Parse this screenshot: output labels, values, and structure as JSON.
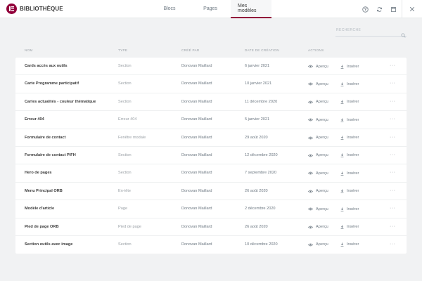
{
  "header": {
    "title": "BIBLIOTHÈQUE",
    "tabs": [
      {
        "label": "Blocs",
        "active": false
      },
      {
        "label": "Pages",
        "active": false
      },
      {
        "label": "Mes modèles",
        "active": true
      }
    ],
    "icons": [
      "help-icon",
      "sync-icon",
      "save-icon",
      "close-icon"
    ]
  },
  "search": {
    "placeholder": "RECHERCHE",
    "value": ""
  },
  "columns": {
    "name": "NOM",
    "type": "TYPE",
    "author": "CRÉÉ PAR",
    "date": "DATE DE CRÉATION",
    "actions": "ACTIONS"
  },
  "action_labels": {
    "preview": "Aperçu",
    "insert": "Insérer",
    "more": "···"
  },
  "templates": [
    {
      "name": "Cards accès aux outils",
      "type": "Section",
      "author": "Donovan Maillard",
      "date": "6 janvier 2021"
    },
    {
      "name": "Carte Programme participatif",
      "type": "Section",
      "author": "Donovan Maillard",
      "date": "10 janvier 2021"
    },
    {
      "name": "Cartes actualités - couleur thématique",
      "type": "Section",
      "author": "Donovan Maillard",
      "date": "11 décembre 2020"
    },
    {
      "name": "Erreur 404",
      "type": "Erreur 404",
      "author": "Donovan Maillard",
      "date": "5 janvier 2021"
    },
    {
      "name": "Formulaire de contact",
      "type": "Fenêtre modale",
      "author": "Donovan Maillard",
      "date": "29 août 2020"
    },
    {
      "name": "Formulaire de contact PIFH",
      "type": "Section",
      "author": "Donovan Maillard",
      "date": "12 décembre 2020"
    },
    {
      "name": "Hero de pages",
      "type": "Section",
      "author": "Donovan Maillard",
      "date": "7 septembre 2020"
    },
    {
      "name": "Menu Principal ORB",
      "type": "En-tête",
      "author": "Donovan Maillard",
      "date": "26 août 2020"
    },
    {
      "name": "Modèle d'article",
      "type": "Page",
      "author": "Donovan Maillard",
      "date": "2 décembre 2020"
    },
    {
      "name": "Pied de page ORB",
      "type": "Pied de page",
      "author": "Donovan Maillard",
      "date": "26 août 2020"
    },
    {
      "name": "Section outils avec image",
      "type": "Section",
      "author": "Donovan Maillard",
      "date": "10 décembre 2020"
    }
  ],
  "colors": {
    "brand": "#92003b",
    "background": "#f1f2f3",
    "panel": "#ffffff",
    "text_dark": "#3b3b3b",
    "text_muted": "#9aa0a6"
  }
}
